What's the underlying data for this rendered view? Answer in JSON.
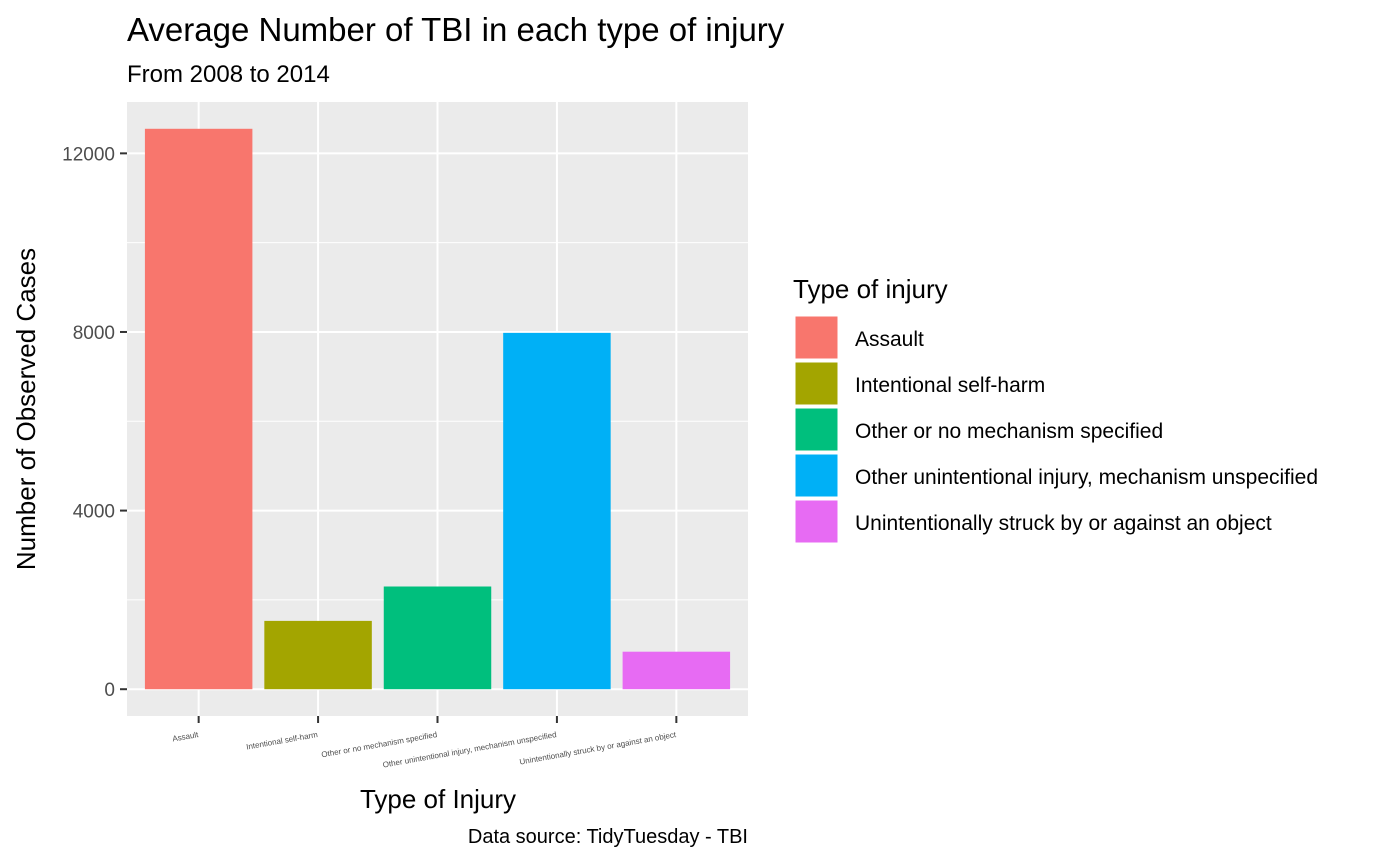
{
  "chart_data": {
    "type": "bar",
    "title": "Average Number of TBI in each type of injury",
    "subtitle": "From 2008 to 2014",
    "xlabel": "Type of Injury",
    "ylabel": "Number of Observed Cases",
    "caption": "Data source: TidyTuesday - TBI",
    "categories": [
      "Assault",
      "Intentional self-harm",
      "Other or no mechanism specified",
      "Other unintentional injury, mechanism unspecified",
      "Unintentionally struck by or against an object"
    ],
    "values": [
      12550,
      1530,
      2300,
      7980,
      840
    ],
    "colors": [
      "#F8766D",
      "#A3A500",
      "#00BF7D",
      "#00B0F6",
      "#E76BF3"
    ],
    "ylim": [
      -600,
      13150
    ],
    "yticks": [
      0,
      4000,
      8000,
      12000
    ],
    "ytick_labels": [
      "0",
      "4000",
      "8000",
      "12000"
    ],
    "grid": true,
    "legend": {
      "title": "Type of injury",
      "placement": "right",
      "entries": [
        "Assault",
        "Intentional self-harm",
        "Other or no mechanism specified",
        "Other unintentional injury, mechanism unspecified",
        "Unintentionally struck by or against an object"
      ]
    }
  }
}
